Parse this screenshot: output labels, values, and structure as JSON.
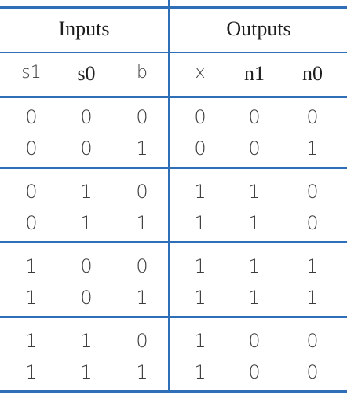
{
  "headers": {
    "inputs": "Inputs",
    "outputs": "Outputs"
  },
  "columns": [
    "s1",
    "s0",
    "b",
    "x",
    "n1",
    "n0"
  ],
  "groups": [
    {
      "rows": [
        [
          "0",
          "0",
          "0",
          "0",
          "0",
          "0"
        ],
        [
          "0",
          "0",
          "1",
          "0",
          "0",
          "1"
        ]
      ]
    },
    {
      "rows": [
        [
          "0",
          "1",
          "0",
          "1",
          "1",
          "0"
        ],
        [
          "0",
          "1",
          "1",
          "1",
          "1",
          "0"
        ]
      ]
    },
    {
      "rows": [
        [
          "1",
          "0",
          "0",
          "1",
          "1",
          "1"
        ],
        [
          "1",
          "0",
          "1",
          "1",
          "1",
          "1"
        ]
      ]
    },
    {
      "rows": [
        [
          "1",
          "1",
          "0",
          "1",
          "0",
          "0"
        ],
        [
          "1",
          "1",
          "1",
          "1",
          "0",
          "0"
        ]
      ]
    }
  ],
  "colors": {
    "rule": "#2f6fb7",
    "text": "#3a3a3a"
  }
}
